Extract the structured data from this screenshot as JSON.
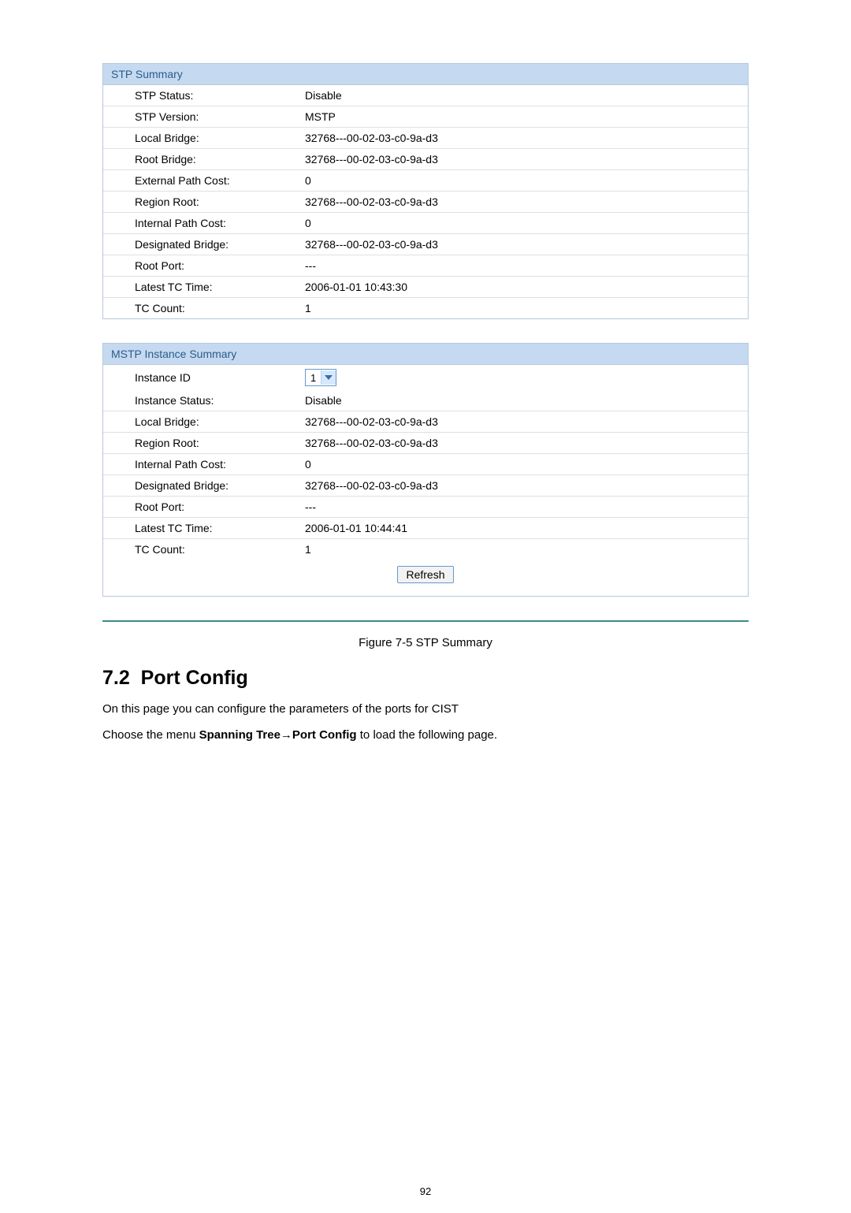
{
  "stp_summary": {
    "header": "STP Summary",
    "header_color": "#2b5c8a",
    "header_bg": "#c5d9f1",
    "rows": [
      {
        "label": "STP Status:",
        "value": "Disable"
      },
      {
        "label": "STP Version:",
        "value": "MSTP"
      },
      {
        "label": "Local Bridge:",
        "value": "32768---00-02-03-c0-9a-d3"
      },
      {
        "label": "Root Bridge:",
        "value": "32768---00-02-03-c0-9a-d3"
      },
      {
        "label": "External Path Cost:",
        "value": "0"
      },
      {
        "label": "Region Root:",
        "value": "32768---00-02-03-c0-9a-d3"
      },
      {
        "label": "Internal Path Cost:",
        "value": "0"
      },
      {
        "label": "Designated Bridge:",
        "value": "32768---00-02-03-c0-9a-d3"
      },
      {
        "label": "Root Port:",
        "value": "---"
      },
      {
        "label": "Latest TC Time:",
        "value": "2006-01-01 10:43:30"
      },
      {
        "label": "TC Count:",
        "value": "1"
      }
    ]
  },
  "mstp_summary": {
    "header": "MSTP Instance Summary",
    "header_color": "#2b5c8a",
    "header_bg": "#c5d9f1",
    "instance_id_label": "Instance ID",
    "instance_id_value": "1",
    "rows": [
      {
        "label": "Instance Status:",
        "value": "Disable"
      },
      {
        "label": "Local Bridge:",
        "value": "32768---00-02-03-c0-9a-d3"
      },
      {
        "label": "Region Root:",
        "value": "32768---00-02-03-c0-9a-d3"
      },
      {
        "label": "Internal Path Cost:",
        "value": "0"
      },
      {
        "label": "Designated Bridge:",
        "value": "32768---00-02-03-c0-9a-d3"
      },
      {
        "label": "Root Port:",
        "value": "---"
      },
      {
        "label": "Latest TC Time:",
        "value": "2006-01-01 10:44:41"
      },
      {
        "label": "TC Count:",
        "value": "1"
      }
    ],
    "refresh_label": "Refresh"
  },
  "figure_caption": "Figure 7-5 STP Summary",
  "section": {
    "number": "7.2",
    "title": "Port Config"
  },
  "body1": "On this page you can configure the parameters of the ports for CIST",
  "body2_prefix": "Choose the menu ",
  "body2_bold": "Spanning Tree→Port Config",
  "body2_suffix": " to load the following page.",
  "page_number": "92",
  "colors": {
    "panel_border": "#b8c8d8",
    "row_border": "#e0e0e0",
    "select_border": "#6699cc",
    "select_arrow_bg": "#d6e8fb",
    "hr_teal": "#3c8c8c"
  }
}
